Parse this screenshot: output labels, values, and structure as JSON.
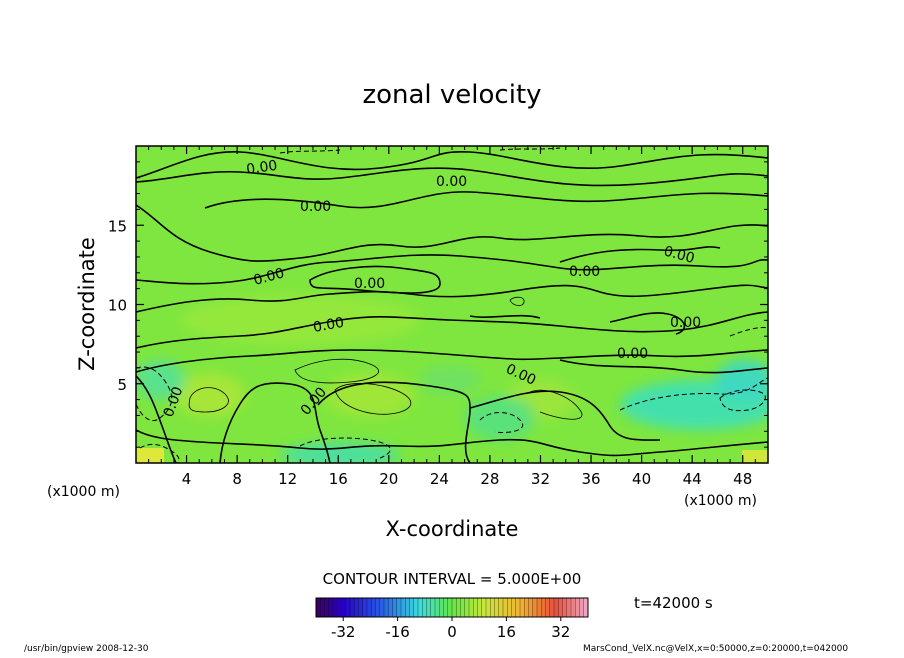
{
  "chart_data": {
    "type": "heatmap",
    "title": "zonal velocity",
    "xlabel": "X-coordinate",
    "ylabel": "Z-coordinate",
    "x_unit": "(x1000 m)",
    "y_unit": "(x1000 m)",
    "x_ticks": [
      "4",
      "8",
      "12",
      "16",
      "20",
      "24",
      "28",
      "32",
      "36",
      "40",
      "44",
      "48"
    ],
    "y_ticks": [
      "5",
      "10",
      "15"
    ],
    "xlim": [
      0,
      50
    ],
    "ylim": [
      0,
      20
    ],
    "contour_interval_text": "CONTOUR INTERVAL = 5.000E+00",
    "time_text": "t=42000 s",
    "colorbar_ticks": [
      "-32",
      "-16",
      "0",
      "16",
      "32"
    ],
    "colorbar_range": [
      -40,
      40
    ],
    "contour_labels": [
      "0.00",
      "0.00",
      "0.00",
      "0.00",
      "0.00",
      "0.00",
      "0.00",
      "0.00",
      "0.00",
      "0.00",
      "0.00",
      "0.00",
      "0.00",
      "0.00",
      "0.00"
    ],
    "background_value": 0,
    "colors": {
      "field": "#7ee63e",
      "negative": "#3ee0b0",
      "positive": "#d8e83a"
    }
  },
  "footer": {
    "left": "/usr/bin/gpview  2008-12-30",
    "right": "MarsCond_VelX.nc@VelX,x=0:50000,z=0:20000,t=042000"
  }
}
